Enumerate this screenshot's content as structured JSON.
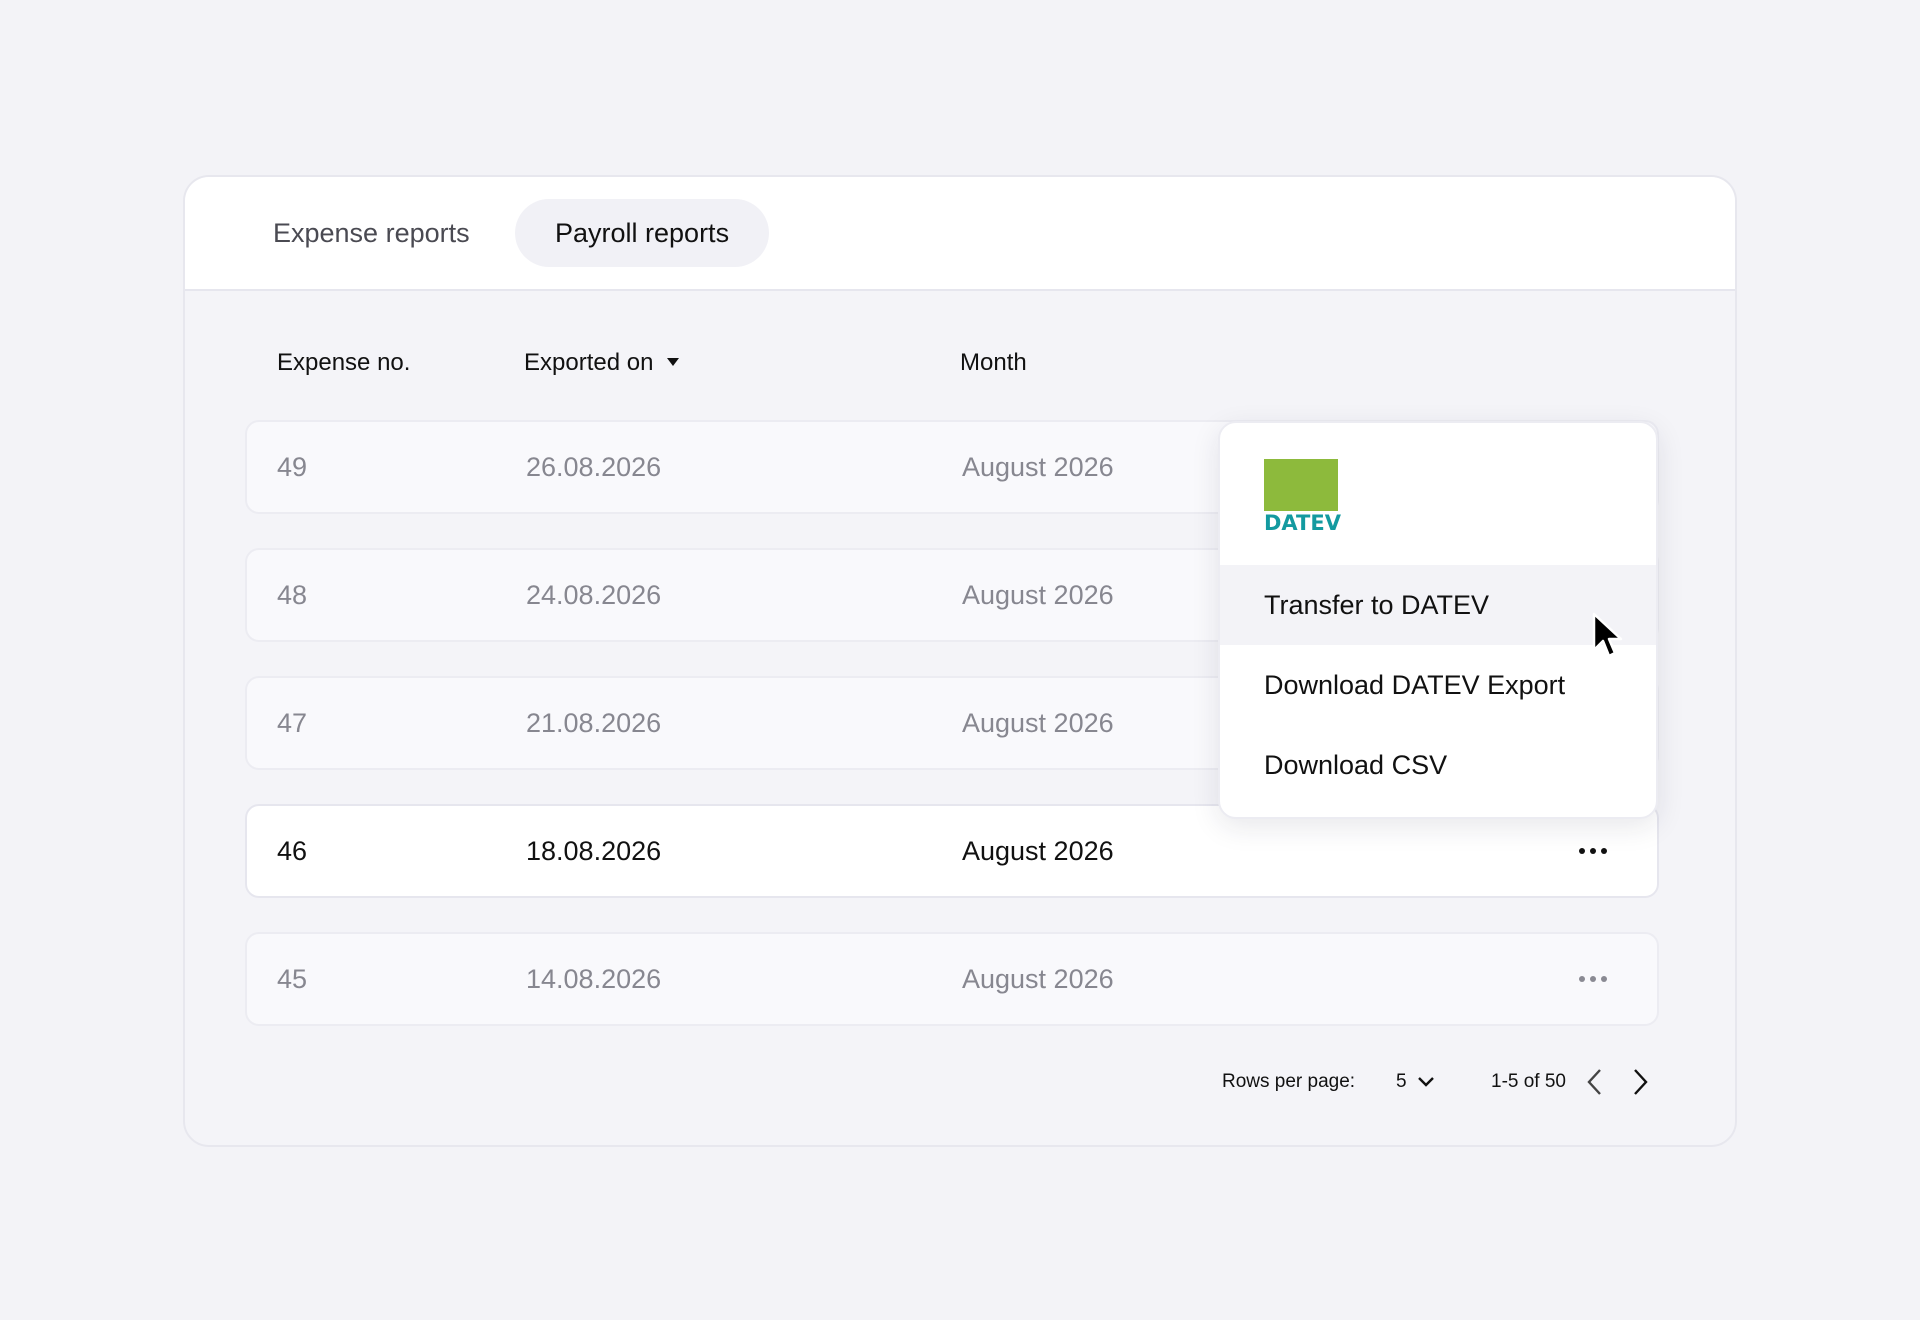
{
  "tabs": [
    {
      "label": "Expense reports",
      "active": false
    },
    {
      "label": "Payroll reports",
      "active": true
    }
  ],
  "table": {
    "columns": [
      "Expense no.",
      "Exported on",
      "Month"
    ],
    "sort_column": "Exported on",
    "sort_direction": "descending",
    "rows": [
      {
        "no": "49",
        "exported_on": "26.08.2026",
        "month": "August 2026"
      },
      {
        "no": "48",
        "exported_on": "24.08.2026",
        "month": "August 2026"
      },
      {
        "no": "47",
        "exported_on": "21.08.2026",
        "month": "August 2026"
      },
      {
        "no": "46",
        "exported_on": "18.08.2026",
        "month": "August 2026"
      },
      {
        "no": "45",
        "exported_on": "14.08.2026",
        "month": "August 2026"
      }
    ],
    "active_row": "46"
  },
  "menu": {
    "logo_text": "DATEV",
    "logo_color": "#8dba3c",
    "logo_text_color": "#139aa0",
    "items": [
      "Transfer to DATEV",
      "Download DATEV Export",
      "Download CSV"
    ],
    "hovered_item": "Transfer to DATEV"
  },
  "pagination": {
    "rows_per_page_label": "Rows per page:",
    "rows_per_page": "5",
    "range": "1-5 of 50"
  }
}
